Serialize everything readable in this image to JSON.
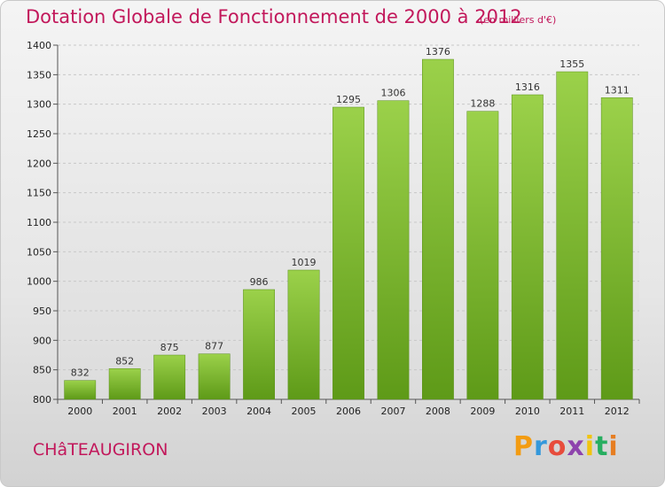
{
  "header": {
    "title": "Dotation Globale de Fonctionnement de 2000 à 2012",
    "units": "(en milliers d'€)"
  },
  "footer": {
    "city": "CHâTEAUGIRON",
    "logo": {
      "letters": [
        "P",
        "r",
        "o",
        "x",
        "i",
        "t",
        "i"
      ],
      "colors": [
        "#f39c12",
        "#3498db",
        "#e74c3c",
        "#8e44ad",
        "#f1c40f",
        "#27ae60",
        "#e67e22"
      ]
    }
  },
  "chart_data": {
    "type": "bar",
    "categories": [
      "2000",
      "2001",
      "2002",
      "2003",
      "2004",
      "2005",
      "2006",
      "2007",
      "2008",
      "2009",
      "2010",
      "2011",
      "2012"
    ],
    "series": [
      {
        "values": [
          832,
          852,
          875,
          877,
          986,
          1019,
          1295,
          1306,
          1376,
          1288,
          1316,
          1355,
          1311
        ]
      }
    ],
    "title": "Dotation Globale de Fonctionnement de 2000 à 2012",
    "xlabel": "",
    "ylabel": "",
    "ylim": [
      800,
      1400
    ],
    "yticks": [
      800,
      850,
      900,
      950,
      1000,
      1050,
      1100,
      1150,
      1200,
      1250,
      1300,
      1350,
      1400
    ],
    "grid": true,
    "bar_color": "#7cb82f",
    "bar_color_light": "#9bd14a",
    "bar_color_dark": "#5e9a18"
  }
}
